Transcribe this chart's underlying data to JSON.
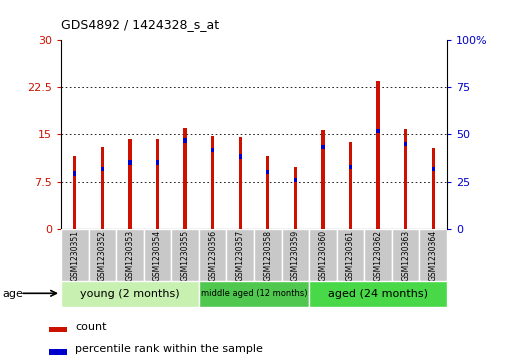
{
  "title": "GDS4892 / 1424328_s_at",
  "samples": [
    "GSM1230351",
    "GSM1230352",
    "GSM1230353",
    "GSM1230354",
    "GSM1230355",
    "GSM1230356",
    "GSM1230357",
    "GSM1230358",
    "GSM1230359",
    "GSM1230360",
    "GSM1230361",
    "GSM1230362",
    "GSM1230363",
    "GSM1230364"
  ],
  "count_values": [
    11.5,
    13.0,
    14.2,
    14.3,
    16.0,
    14.7,
    14.5,
    11.5,
    9.8,
    15.7,
    13.7,
    23.5,
    15.8,
    12.8
  ],
  "percentile_values": [
    8.8,
    9.5,
    10.5,
    10.5,
    14.0,
    12.5,
    11.5,
    9.0,
    7.7,
    13.0,
    9.8,
    15.5,
    13.5,
    9.5
  ],
  "left_yticks": [
    0,
    7.5,
    15,
    22.5,
    30
  ],
  "left_ylabels": [
    "0",
    "7.5",
    "15",
    "22.5",
    "30"
  ],
  "right_yticks": [
    0,
    25,
    50,
    75,
    100
  ],
  "right_ylabels": [
    "0",
    "25",
    "50",
    "75",
    "100%"
  ],
  "ylim": [
    0,
    30
  ],
  "right_ylim": [
    0,
    100
  ],
  "groups": [
    {
      "label": "young (2 months)",
      "count": 5,
      "color": "#c8f0b8"
    },
    {
      "label": "middle aged (12 months)",
      "count": 4,
      "color": "#60c860"
    },
    {
      "label": "aged (24 months)",
      "count": 5,
      "color": "#40d840"
    }
  ],
  "bar_color": "#CC1100",
  "percentile_bar_color": "#0000CC",
  "tick_label_color_left": "#CC1100",
  "tick_label_color_right": "#0000CC",
  "bar_width": 0.12,
  "blue_bar_height": 0.7,
  "grid_color": "#000000",
  "xticklabel_bg": "#C8C8C8",
  "legend_count_color": "#CC1100",
  "legend_percentile_color": "#0000CC",
  "title_fontsize": 9,
  "ytick_fontsize": 8,
  "label_fontsize": 7,
  "group_fontsize_large": 8,
  "group_fontsize_small": 6
}
